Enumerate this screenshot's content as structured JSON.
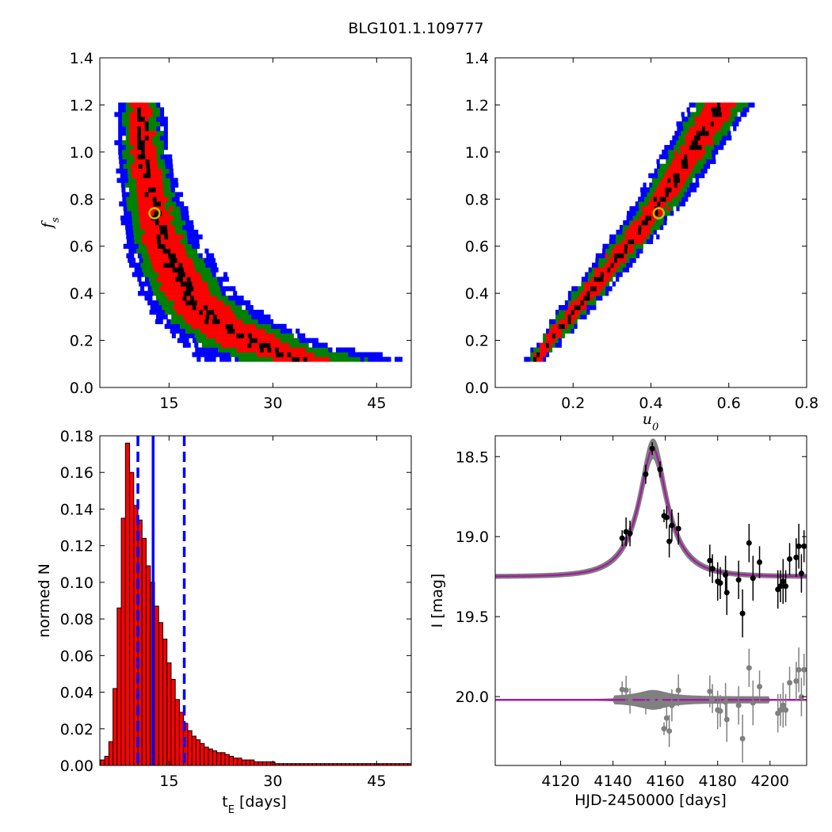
{
  "figure": {
    "title": "BLG101.1.109777"
  },
  "chart_data": [
    {
      "id": "tE-fs",
      "type": "heatmap",
      "xlabel": "",
      "ylabel": "f",
      "ylabel_sub": "s",
      "xlim": [
        5,
        50
      ],
      "ylim": [
        0.0,
        1.4
      ],
      "xticks": [
        15,
        30,
        45
      ],
      "yticks": [
        0.0,
        0.2,
        0.4,
        0.6,
        0.8,
        1.0,
        1.2,
        1.4
      ],
      "colors": {
        "sigma3": "#0000ff",
        "sigma2": "#008000",
        "sigma1": "#ff0000",
        "best_density": "#000000",
        "marker": "#bfbf00"
      },
      "best_fit": {
        "x": 12.9,
        "y": 0.74
      },
      "bands": [
        {
          "y": 1.2,
          "ridge": 10.5,
          "w1": 1.4,
          "w2": 2.4,
          "w3": 3.4
        },
        {
          "y": 1.0,
          "ridge": 11.0,
          "w1": 1.7,
          "w2": 2.8,
          "w3": 3.9
        },
        {
          "y": 0.8,
          "ridge": 12.2,
          "w1": 2.1,
          "w2": 3.3,
          "w3": 4.5
        },
        {
          "y": 0.6,
          "ridge": 14.0,
          "w1": 2.7,
          "w2": 4.1,
          "w3": 5.6
        },
        {
          "y": 0.4,
          "ridge": 17.5,
          "w1": 3.5,
          "w2": 5.2,
          "w3": 7.0
        },
        {
          "y": 0.28,
          "ridge": 21.5,
          "w1": 4.2,
          "w2": 6.3,
          "w3": 8.5
        },
        {
          "y": 0.18,
          "ridge": 27.5,
          "w1": 5.0,
          "w2": 7.5,
          "w3": 10.5
        },
        {
          "y": 0.12,
          "ridge": 34.0,
          "w1": 4.0,
          "w2": 9.0,
          "w3": 15.0
        }
      ]
    },
    {
      "id": "u0-fs",
      "type": "heatmap",
      "xlabel": "u",
      "xlabel_sub": "0",
      "ylabel": "",
      "xlim": [
        0.0,
        0.8
      ],
      "ylim": [
        0.0,
        1.4
      ],
      "xticks": [
        0.2,
        0.4,
        0.6,
        0.8
      ],
      "yticks": [
        0.0,
        0.2,
        0.4,
        0.6,
        0.8,
        1.0,
        1.2,
        1.4
      ],
      "best_fit": {
        "x": 0.42,
        "y": 0.74
      },
      "bands": [
        {
          "y": 0.12,
          "ridge": 0.1,
          "w1": 0.012,
          "w2": 0.02,
          "w3": 0.026
        },
        {
          "y": 0.4,
          "ridge": 0.235,
          "w1": 0.022,
          "w2": 0.036,
          "w3": 0.048
        },
        {
          "y": 0.74,
          "ridge": 0.4,
          "w1": 0.028,
          "w2": 0.046,
          "w3": 0.062
        },
        {
          "y": 1.0,
          "ridge": 0.5,
          "w1": 0.035,
          "w2": 0.055,
          "w3": 0.072
        },
        {
          "y": 1.2,
          "ridge": 0.575,
          "w1": 0.04,
          "w2": 0.065,
          "w3": 0.085
        }
      ]
    },
    {
      "id": "tE-hist",
      "type": "bar",
      "xlabel": "t",
      "xlabel_sub": "E",
      "xlabel_suffix": " [days]",
      "ylabel": "normed N",
      "xlim": [
        5,
        50
      ],
      "ylim": [
        0.0,
        0.18
      ],
      "xticks": [
        15,
        30,
        45
      ],
      "yticks": [
        0.0,
        0.02,
        0.04,
        0.06,
        0.08,
        0.1,
        0.12,
        0.14,
        0.16,
        0.18
      ],
      "yticklabels": [
        "0.00",
        "0.02",
        "0.04",
        "0.06",
        "0.08",
        "0.10",
        "0.12",
        "0.14",
        "0.16",
        "0.18"
      ],
      "bin_start": 5.1,
      "bin_width": 0.6,
      "values": [
        0.003,
        0.005,
        0.013,
        0.042,
        0.086,
        0.135,
        0.176,
        0.16,
        0.142,
        0.134,
        0.124,
        0.109,
        0.1,
        0.087,
        0.078,
        0.069,
        0.056,
        0.047,
        0.036,
        0.029,
        0.023,
        0.019,
        0.016,
        0.014,
        0.012,
        0.01,
        0.009,
        0.008,
        0.007,
        0.007,
        0.006,
        0.005,
        0.004,
        0.004,
        0.003,
        0.003,
        0.003,
        0.002,
        0.002,
        0.002,
        0.002,
        0.002,
        0.001,
        0.001,
        0.001,
        0.001,
        0.001,
        0.001,
        0.001,
        0.001,
        0.001,
        0.001,
        0.001,
        0.001,
        0.001,
        0.001,
        0.001,
        0.001,
        0.001,
        0.001,
        0.001,
        0.001,
        0.001,
        0.001,
        0.001,
        0.001,
        0.001,
        0.001,
        0.001,
        0.001,
        0.001,
        0.001,
        0.001,
        0.001,
        0.001
      ],
      "bar_color": "#ff0000",
      "lines": [
        {
          "x": 12.7,
          "style": "solid",
          "color": "#0000ff"
        },
        {
          "x": 10.5,
          "style": "dashed",
          "color": "#0000ff"
        },
        {
          "x": 17.2,
          "style": "dashed",
          "color": "#0000ff"
        }
      ]
    },
    {
      "id": "lightcurve",
      "type": "scatter",
      "xlabel": "HJD-2450000 [days]",
      "ylabel": "I [mag]",
      "xlim": [
        4095,
        4214
      ],
      "ylim": [
        20.43,
        18.37
      ],
      "xticks": [
        4120,
        4140,
        4160,
        4180,
        4200
      ],
      "yticks": [
        18.5,
        19.0,
        19.5,
        20.0
      ],
      "model": {
        "t0": 4155.3,
        "tE": 12.9,
        "u0": 0.42,
        "I_base": 19.25,
        "I_peak": 18.45
      },
      "residual_offset": 20.02,
      "colors": {
        "model": "#a020a0",
        "band": "#808080",
        "data": "#000000",
        "residuals": "#808080"
      },
      "points": [
        {
          "x": 4143.5,
          "y": 19.01,
          "err": 0.05
        },
        {
          "x": 4145.0,
          "y": 18.97,
          "err": 0.09
        },
        {
          "x": 4146.5,
          "y": 18.98,
          "err": 0.08
        },
        {
          "x": 4152.5,
          "y": 18.61,
          "err": 0.06
        },
        {
          "x": 4155.0,
          "y": 18.45,
          "err": 0.04
        },
        {
          "x": 4158.0,
          "y": 18.58,
          "err": 0.05
        },
        {
          "x": 4159.5,
          "y": 18.87,
          "err": 0.04
        },
        {
          "x": 4160.5,
          "y": 18.88,
          "err": 0.07
        },
        {
          "x": 4161.5,
          "y": 19.03,
          "err": 0.1
        },
        {
          "x": 4162.5,
          "y": 18.93,
          "err": 0.1
        },
        {
          "x": 4165.0,
          "y": 18.95,
          "err": 0.1
        },
        {
          "x": 4177.0,
          "y": 19.15,
          "err": 0.1
        },
        {
          "x": 4178.0,
          "y": 19.2,
          "err": 0.09
        },
        {
          "x": 4180.0,
          "y": 19.28,
          "err": 0.12
        },
        {
          "x": 4181.0,
          "y": 19.29,
          "err": 0.1
        },
        {
          "x": 4183.0,
          "y": 19.24,
          "err": 0.12
        },
        {
          "x": 4183.5,
          "y": 19.35,
          "err": 0.14
        },
        {
          "x": 4188.0,
          "y": 19.27,
          "err": 0.12
        },
        {
          "x": 4189.5,
          "y": 19.48,
          "err": 0.15
        },
        {
          "x": 4192.0,
          "y": 19.04,
          "err": 0.12
        },
        {
          "x": 4193.5,
          "y": 19.26,
          "err": 0.14
        },
        {
          "x": 4196.0,
          "y": 19.16,
          "err": 0.1
        },
        {
          "x": 4203.0,
          "y": 19.33,
          "err": 0.12
        },
        {
          "x": 4204.0,
          "y": 19.31,
          "err": 0.1
        },
        {
          "x": 4205.0,
          "y": 19.28,
          "err": 0.14
        },
        {
          "x": 4206.0,
          "y": 19.31,
          "err": 0.1
        },
        {
          "x": 4207.5,
          "y": 19.14,
          "err": 0.1
        },
        {
          "x": 4210.0,
          "y": 19.13,
          "err": 0.12
        },
        {
          "x": 4211.0,
          "y": 19.06,
          "err": 0.14
        },
        {
          "x": 4212.0,
          "y": 19.23,
          "err": 0.12
        },
        {
          "x": 4213.0,
          "y": 19.06,
          "err": 0.1
        }
      ]
    }
  ]
}
